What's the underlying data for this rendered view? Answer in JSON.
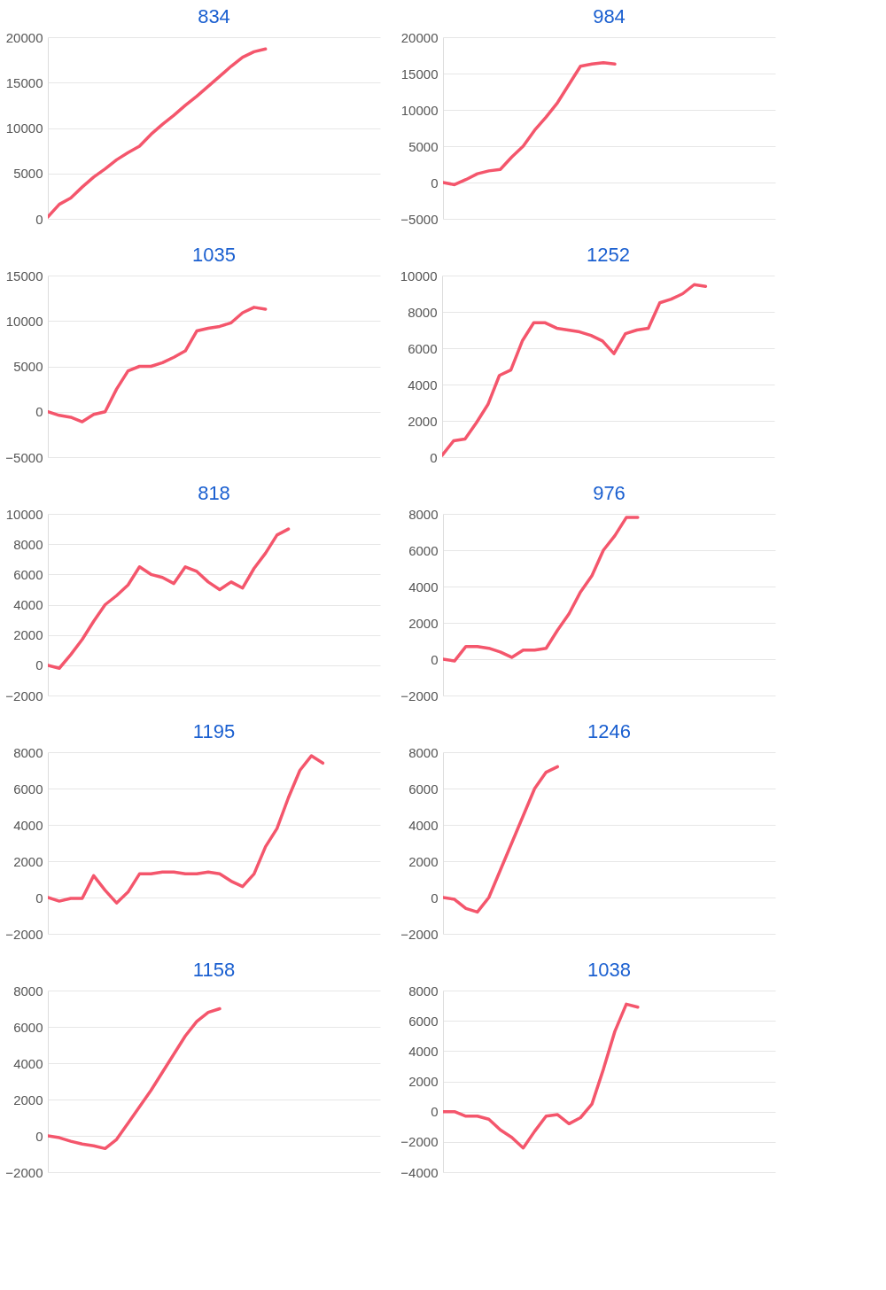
{
  "chart_data": [
    {
      "type": "line",
      "title": "834",
      "categories": [
        null,
        null,
        null,
        null,
        null,
        null,
        null,
        null,
        null,
        null,
        null,
        null,
        null,
        null,
        null,
        null,
        null,
        null,
        null,
        null,
        null,
        null,
        null,
        null,
        null,
        null,
        null,
        null,
        null,
        null
      ],
      "series": [
        {
          "color": "#f4566c",
          "values": [
            200,
            1600,
            2300,
            3500,
            4600,
            5500,
            6500,
            7300,
            8000,
            9300,
            10400,
            11400,
            12500,
            13500,
            14600,
            15700,
            16800,
            17800,
            18400,
            18700,
            null,
            null,
            null,
            null,
            null,
            null,
            null,
            null,
            null,
            null
          ]
        }
      ],
      "ylim": [
        0,
        20000
      ],
      "yticks": [
        0,
        5000,
        10000,
        15000,
        20000
      ],
      "grid": "y",
      "tick_labels": "y"
    },
    {
      "type": "line",
      "title": "984",
      "categories": [
        null,
        null,
        null,
        null,
        null,
        null,
        null,
        null,
        null,
        null,
        null,
        null,
        null,
        null,
        null,
        null,
        null,
        null,
        null,
        null,
        null,
        null,
        null,
        null,
        null,
        null,
        null,
        null,
        null,
        null
      ],
      "series": [
        {
          "color": "#f4566c",
          "values": [
            0,
            -300,
            400,
            1200,
            1600,
            1800,
            3500,
            5000,
            7200,
            9000,
            11000,
            13500,
            16000,
            16300,
            16500,
            16300,
            null,
            null,
            null,
            null,
            null,
            null,
            null,
            null,
            null,
            null,
            null,
            null,
            null,
            null
          ]
        }
      ],
      "ylim": [
        -5000,
        20000
      ],
      "yticks": [
        -5000,
        0,
        5000,
        10000,
        15000,
        20000
      ],
      "grid": "y",
      "tick_labels": "y"
    },
    {
      "type": "line",
      "title": "1035",
      "categories": [
        null,
        null,
        null,
        null,
        null,
        null,
        null,
        null,
        null,
        null,
        null,
        null,
        null,
        null,
        null,
        null,
        null,
        null,
        null,
        null,
        null,
        null,
        null,
        null,
        null,
        null,
        null,
        null,
        null,
        null
      ],
      "series": [
        {
          "color": "#f4566c",
          "values": [
            0,
            -400,
            -600,
            -1100,
            -300,
            0,
            2500,
            4500,
            5000,
            5000,
            5400,
            6000,
            6700,
            8900,
            9200,
            9400,
            9800,
            10900,
            11500,
            11300,
            null,
            null,
            null,
            null,
            null,
            null,
            null,
            null,
            null,
            null
          ]
        }
      ],
      "ylim": [
        -5000,
        15000
      ],
      "yticks": [
        -5000,
        0,
        5000,
        10000,
        15000
      ],
      "grid": "y",
      "tick_labels": "y"
    },
    {
      "type": "line",
      "title": "1252",
      "categories": [
        null,
        null,
        null,
        null,
        null,
        null,
        null,
        null,
        null,
        null,
        null,
        null,
        null,
        null,
        null,
        null,
        null,
        null,
        null,
        null,
        null,
        null,
        null,
        null,
        null,
        null,
        null,
        null,
        null,
        null
      ],
      "series": [
        {
          "color": "#f4566c",
          "values": [
            100,
            900,
            1000,
            1900,
            2900,
            4500,
            4800,
            6400,
            7400,
            7400,
            7100,
            7000,
            6900,
            6700,
            6400,
            5700,
            6800,
            7000,
            7100,
            8500,
            8700,
            9000,
            9500,
            9400,
            null,
            null,
            null,
            null,
            null,
            null
          ]
        }
      ],
      "ylim": [
        0,
        10000
      ],
      "yticks": [
        0,
        2000,
        4000,
        6000,
        8000,
        10000
      ],
      "grid": "y",
      "tick_labels": "y"
    },
    {
      "type": "line",
      "title": "818",
      "categories": [
        null,
        null,
        null,
        null,
        null,
        null,
        null,
        null,
        null,
        null,
        null,
        null,
        null,
        null,
        null,
        null,
        null,
        null,
        null,
        null,
        null,
        null,
        null,
        null,
        null,
        null,
        null,
        null,
        null,
        null
      ],
      "series": [
        {
          "color": "#f4566c",
          "values": [
            0,
            -200,
            700,
            1700,
            2900,
            4000,
            4600,
            5300,
            6500,
            6000,
            5800,
            5400,
            6500,
            6200,
            5500,
            5000,
            5500,
            5100,
            6400,
            7400,
            8600,
            9000,
            null,
            null,
            null,
            null,
            null,
            null,
            null,
            null
          ]
        }
      ],
      "ylim": [
        -2000,
        10000
      ],
      "yticks": [
        -2000,
        0,
        2000,
        4000,
        6000,
        8000,
        10000
      ],
      "grid": "y",
      "tick_labels": "y"
    },
    {
      "type": "line",
      "title": "976",
      "categories": [
        null,
        null,
        null,
        null,
        null,
        null,
        null,
        null,
        null,
        null,
        null,
        null,
        null,
        null,
        null,
        null,
        null,
        null,
        null,
        null,
        null,
        null,
        null,
        null,
        null,
        null,
        null,
        null,
        null,
        null
      ],
      "series": [
        {
          "color": "#f4566c",
          "values": [
            0,
            -100,
            700,
            700,
            600,
            400,
            100,
            500,
            500,
            600,
            1600,
            2500,
            3700,
            4600,
            6000,
            6800,
            7800,
            7800,
            null,
            null,
            null,
            null,
            null,
            null,
            null,
            null,
            null,
            null,
            null,
            null
          ]
        }
      ],
      "ylim": [
        -2000,
        8000
      ],
      "yticks": [
        -2000,
        0,
        2000,
        4000,
        6000,
        8000
      ],
      "grid": "y",
      "tick_labels": "y"
    },
    {
      "type": "line",
      "title": "1195",
      "categories": [
        null,
        null,
        null,
        null,
        null,
        null,
        null,
        null,
        null,
        null,
        null,
        null,
        null,
        null,
        null,
        null,
        null,
        null,
        null,
        null,
        null,
        null,
        null,
        null,
        null,
        null,
        null,
        null,
        null,
        null
      ],
      "series": [
        {
          "color": "#f4566c",
          "values": [
            0,
            -200,
            -50,
            -50,
            1200,
            400,
            -300,
            300,
            1300,
            1300,
            1400,
            1400,
            1300,
            1300,
            1400,
            1300,
            900,
            600,
            1300,
            2800,
            3800,
            5500,
            7000,
            7800,
            7400,
            null,
            null,
            null,
            null,
            null
          ]
        }
      ],
      "ylim": [
        -2000,
        8000
      ],
      "yticks": [
        -2000,
        0,
        2000,
        4000,
        6000,
        8000
      ],
      "grid": "y",
      "tick_labels": "y"
    },
    {
      "type": "line",
      "title": "1246",
      "categories": [
        null,
        null,
        null,
        null,
        null,
        null,
        null,
        null,
        null,
        null,
        null,
        null,
        null,
        null,
        null,
        null,
        null,
        null,
        null,
        null,
        null,
        null,
        null,
        null,
        null,
        null,
        null,
        null,
        null,
        null
      ],
      "series": [
        {
          "color": "#f4566c",
          "values": [
            0,
            -100,
            -600,
            -800,
            0,
            1500,
            3000,
            4500,
            6000,
            6900,
            7200,
            null,
            null,
            null,
            null,
            null,
            null,
            null,
            null,
            null,
            null,
            null,
            null,
            null,
            null,
            null,
            null,
            null,
            null,
            null
          ]
        }
      ],
      "ylim": [
        -2000,
        8000
      ],
      "yticks": [
        -2000,
        0,
        2000,
        4000,
        6000,
        8000
      ],
      "grid": "y",
      "tick_labels": "y"
    },
    {
      "type": "line",
      "title": "1158",
      "categories": [
        null,
        null,
        null,
        null,
        null,
        null,
        null,
        null,
        null,
        null,
        null,
        null,
        null,
        null,
        null,
        null,
        null,
        null,
        null,
        null,
        null,
        null,
        null,
        null,
        null,
        null,
        null,
        null,
        null,
        null
      ],
      "series": [
        {
          "color": "#f4566c",
          "values": [
            0,
            -100,
            -300,
            -450,
            -550,
            -700,
            -200,
            700,
            1600,
            2500,
            3500,
            4500,
            5500,
            6300,
            6800,
            7000,
            null,
            null,
            null,
            null,
            null,
            null,
            null,
            null,
            null,
            null,
            null,
            null,
            null,
            null
          ]
        }
      ],
      "ylim": [
        -2000,
        8000
      ],
      "yticks": [
        -2000,
        0,
        2000,
        4000,
        6000,
        8000
      ],
      "grid": "y",
      "tick_labels": "y"
    },
    {
      "type": "line",
      "title": "1038",
      "categories": [
        null,
        null,
        null,
        null,
        null,
        null,
        null,
        null,
        null,
        null,
        null,
        null,
        null,
        null,
        null,
        null,
        null,
        null,
        null,
        null,
        null,
        null,
        null,
        null,
        null,
        null,
        null,
        null,
        null,
        null
      ],
      "series": [
        {
          "color": "#f4566c",
          "values": [
            0,
            0,
            -300,
            -300,
            -500,
            -1200,
            -1700,
            -2400,
            -1300,
            -300,
            -200,
            -800,
            -400,
            500,
            2800,
            5300,
            7100,
            6900,
            null,
            null,
            null,
            null,
            null,
            null,
            null,
            null,
            null,
            null,
            null,
            null
          ]
        }
      ],
      "ylim": [
        -4000,
        8000
      ],
      "yticks": [
        -4000,
        -2000,
        0,
        2000,
        4000,
        6000,
        8000
      ],
      "grid": "y",
      "tick_labels": "y"
    }
  ]
}
